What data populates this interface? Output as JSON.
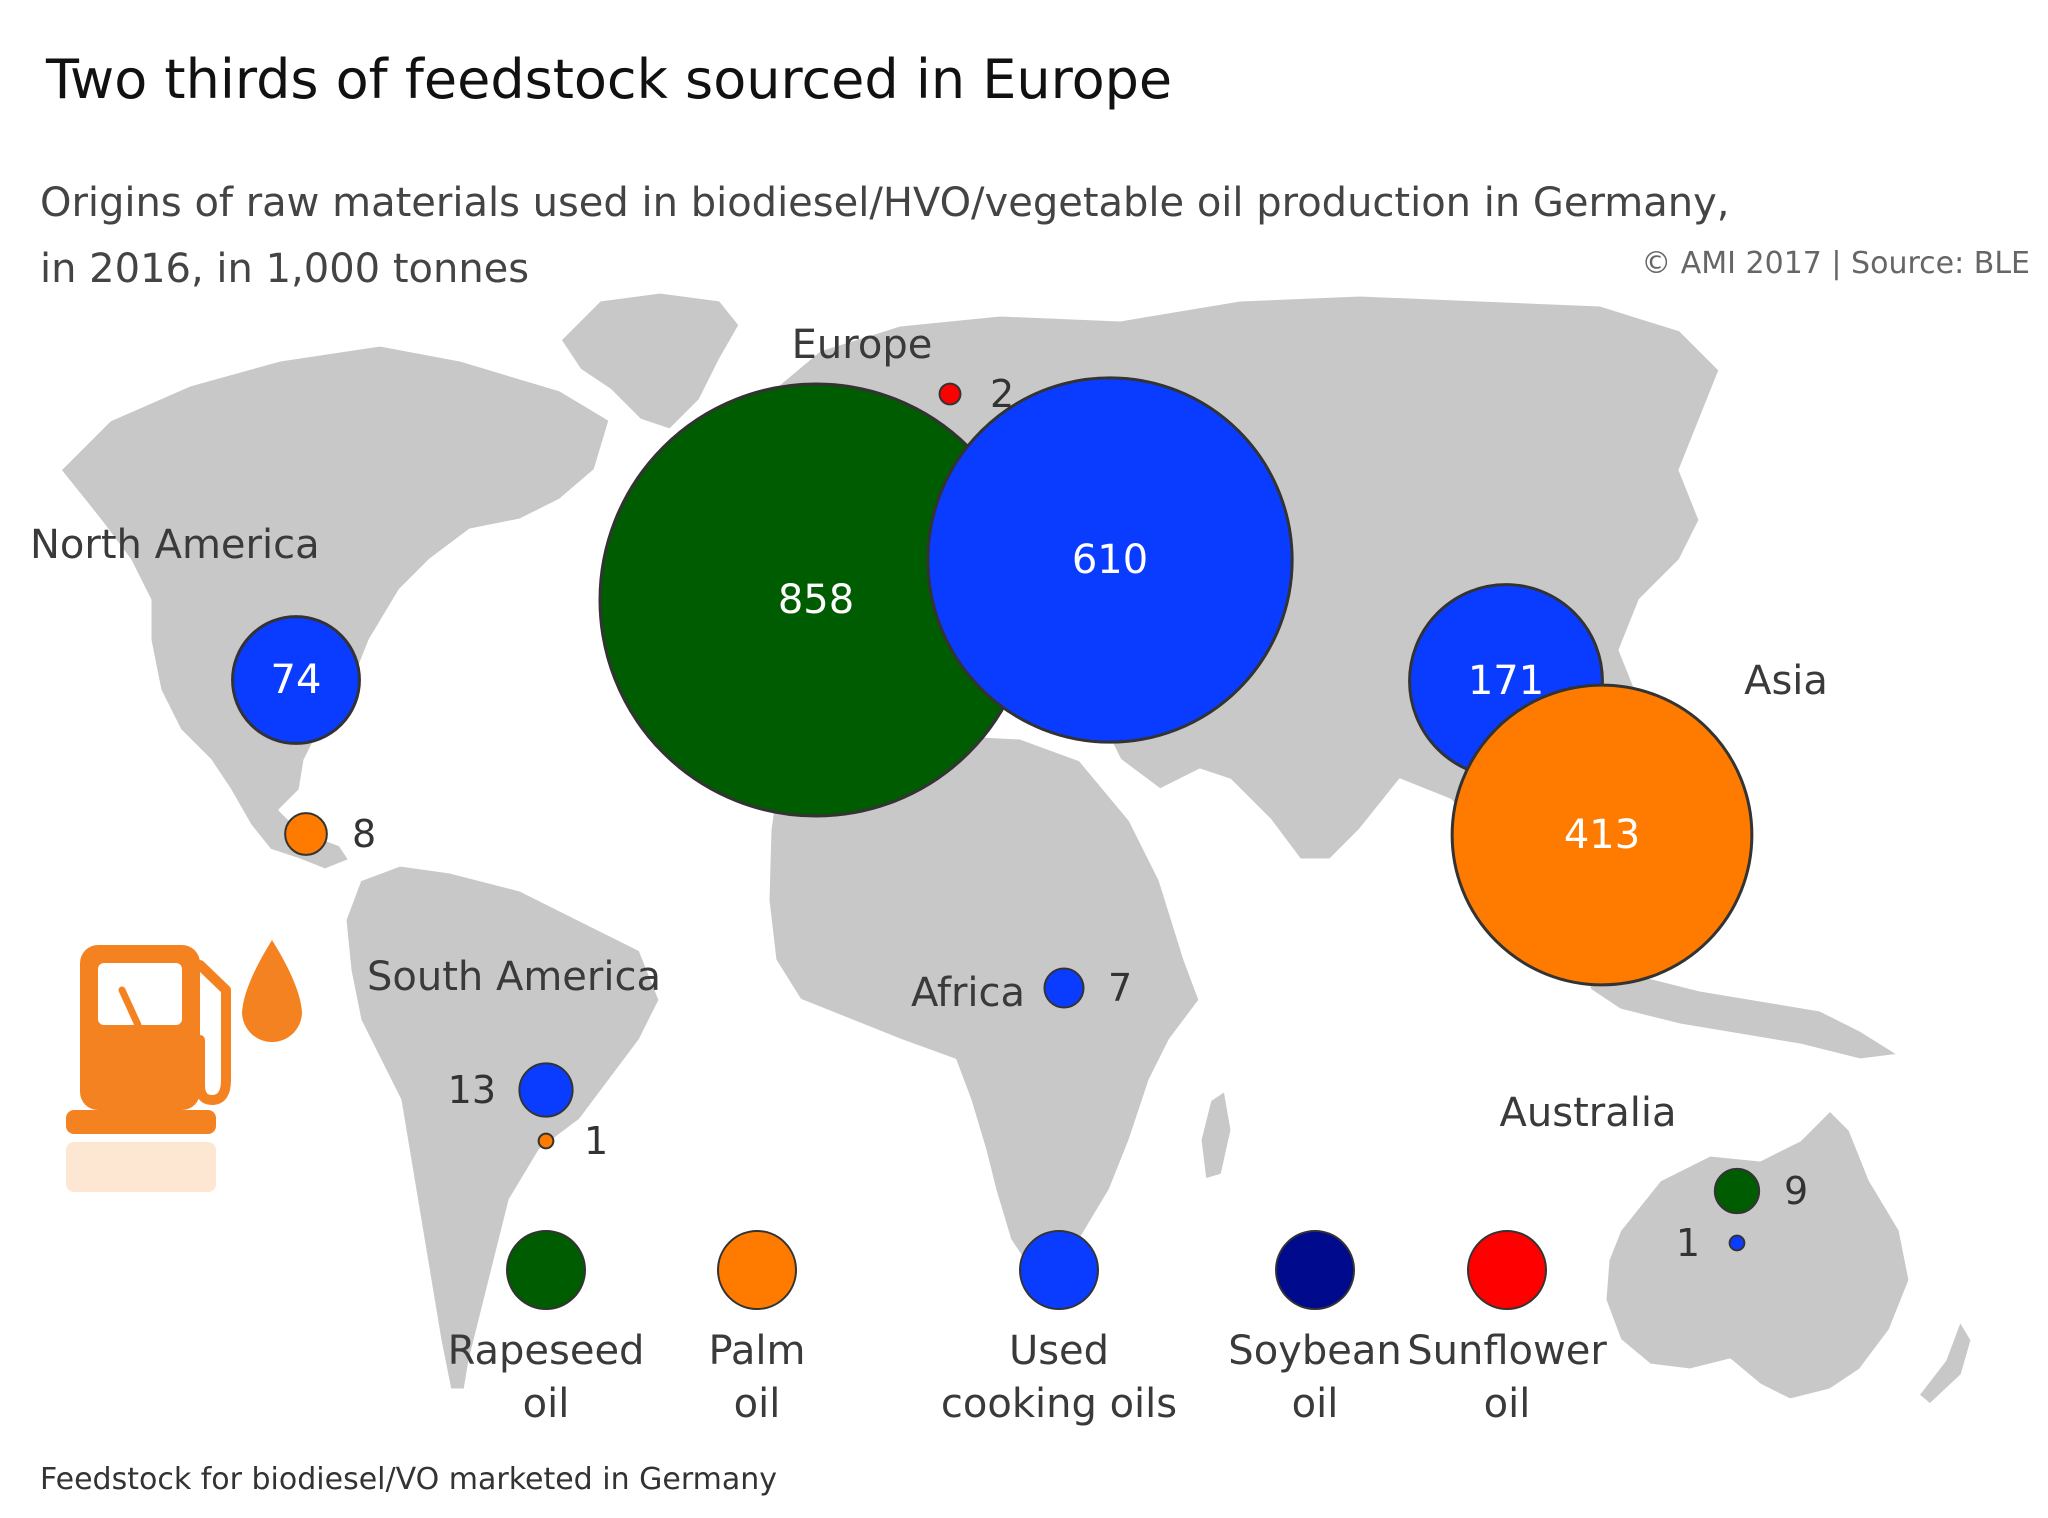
{
  "title": "Two thirds of feedstock sourced in Europe",
  "subtitle_line1": "Origins of raw materials used in biodiesel/HVO/vegetable oil production in Germany,",
  "subtitle_line2": "in 2016, in 1,000 tonnes",
  "source": "© AMI 2017 | Source: BLE",
  "footnote": "Feedstock for biodiesel/VO marketed in Germany",
  "icon": "fuel-pump-icon",
  "colors": {
    "background": "#ffffff",
    "land": "#c8c8c8",
    "rapeseed": "#005c00",
    "palm": "#ff7b00",
    "used_cooking": "#0a3cff",
    "soybean": "#000a8c",
    "sunflower": "#ff0000",
    "fuel_icon": "#f58220"
  },
  "chart_data": {
    "type": "bubble-map",
    "unit": "1,000 tonnes",
    "series": [
      {
        "name": "Rapeseed oil",
        "color": "#005c00"
      },
      {
        "name": "Palm oil",
        "color": "#ff7b00"
      },
      {
        "name": "Used cooking oils",
        "color": "#0a3cff"
      },
      {
        "name": "Soybean oil",
        "color": "#000a8c"
      },
      {
        "name": "Sunflower oil",
        "color": "#ff0000"
      }
    ],
    "regions": [
      {
        "name": "Europe",
        "values": [
          {
            "series": "Rapeseed oil",
            "value": 858
          },
          {
            "series": "Used cooking oils",
            "value": 610
          },
          {
            "series": "Sunflower oil",
            "value": 2
          }
        ]
      },
      {
        "name": "North America",
        "values": [
          {
            "series": "Used cooking oils",
            "value": 74
          },
          {
            "series": "Palm oil",
            "value": 8
          }
        ]
      },
      {
        "name": "Asia",
        "values": [
          {
            "series": "Used cooking oils",
            "value": 171
          },
          {
            "series": "Palm oil",
            "value": 413
          }
        ]
      },
      {
        "name": "South America",
        "values": [
          {
            "series": "Used cooking oils",
            "value": 13
          },
          {
            "series": "Palm oil",
            "value": 1
          }
        ]
      },
      {
        "name": "Africa",
        "values": [
          {
            "series": "Used cooking oils",
            "value": 7
          }
        ]
      },
      {
        "name": "Australia",
        "values": [
          {
            "series": "Rapeseed oil",
            "value": 9
          },
          {
            "series": "Used cooking oils",
            "value": 1
          }
        ]
      }
    ],
    "legend": [
      "Rapeseed oil",
      "Palm oil",
      "Used cooking oils",
      "Soybean oil",
      "Sunflower oil"
    ],
    "legend_placement": "bottom-center"
  }
}
